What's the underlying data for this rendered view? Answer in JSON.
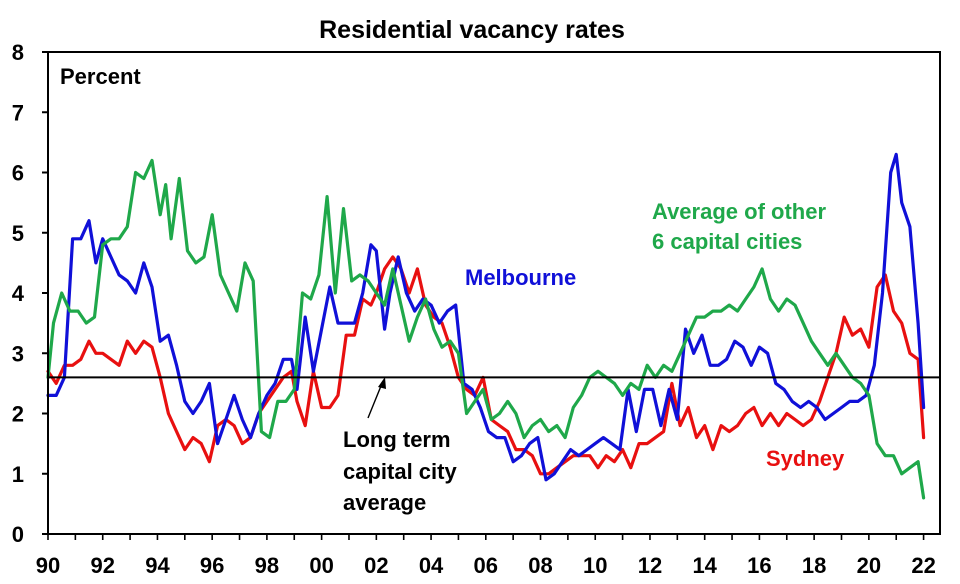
{
  "chart_data": {
    "type": "line",
    "title": "Residential vacancy rates",
    "ylabel": "Percent",
    "xlabel": "",
    "ylim": [
      0,
      8
    ],
    "xlim": [
      1990,
      2022.6
    ],
    "y_ticks": [
      "0",
      "1",
      "2",
      "3",
      "4",
      "5",
      "6",
      "7",
      "8"
    ],
    "x_ticks": [
      "90",
      "92",
      "94",
      "96",
      "98",
      "00",
      "02",
      "04",
      "06",
      "08",
      "10",
      "12",
      "14",
      "16",
      "18",
      "20",
      "22"
    ],
    "grid": false,
    "reference_line": {
      "value": 2.6,
      "label": "Long term capital city average",
      "label_lines": [
        "Long term",
        "capital city",
        "average"
      ],
      "color": "#000000"
    },
    "series": [
      {
        "name": "Melbourne",
        "color": "#1010d8",
        "x": [
          1990.0,
          1990.3,
          1990.6,
          1990.9,
          1991.2,
          1991.5,
          1991.75,
          1992.0,
          1992.3,
          1992.6,
          1992.9,
          1993.2,
          1993.5,
          1993.8,
          1994.1,
          1994.4,
          1994.7,
          1995.0,
          1995.3,
          1995.6,
          1995.9,
          1996.2,
          1996.5,
          1996.8,
          1997.1,
          1997.4,
          1997.7,
          1998.0,
          1998.3,
          1998.6,
          1998.9,
          1999.1,
          1999.4,
          1999.7,
          2000.0,
          2000.3,
          2000.6,
          2000.9,
          2001.2,
          2001.5,
          2001.8,
          2002.0,
          2002.3,
          2002.5,
          2002.8,
          2003.1,
          2003.4,
          2003.7,
          2004.0,
          2004.3,
          2004.6,
          2004.9,
          2005.2,
          2005.5,
          2005.8,
          2006.1,
          2006.4,
          2006.7,
          2007.0,
          2007.3,
          2007.6,
          2007.9,
          2008.2,
          2008.5,
          2008.8,
          2009.1,
          2009.4,
          2009.7,
          2010.0,
          2010.3,
          2010.6,
          2010.9,
          2011.2,
          2011.5,
          2011.8,
          2012.1,
          2012.4,
          2012.7,
          2013.0,
          2013.3,
          2013.6,
          2013.9,
          2014.2,
          2014.5,
          2014.8,
          2015.1,
          2015.4,
          2015.7,
          2016.0,
          2016.3,
          2016.6,
          2016.9,
          2017.2,
          2017.5,
          2017.8,
          2018.1,
          2018.4,
          2018.7,
          2019.0,
          2019.3,
          2019.6,
          2019.9,
          2020.2,
          2020.5,
          2020.8,
          2021.0,
          2021.2,
          2021.5,
          2021.8,
          2022.0
        ],
        "values": [
          2.3,
          2.3,
          2.6,
          4.9,
          4.9,
          5.2,
          4.5,
          4.9,
          4.6,
          4.3,
          4.2,
          4.0,
          4.5,
          4.1,
          3.2,
          3.3,
          2.8,
          2.2,
          2.0,
          2.2,
          2.5,
          1.5,
          1.9,
          2.3,
          1.9,
          1.6,
          2.0,
          2.3,
          2.5,
          2.9,
          2.9,
          2.4,
          3.6,
          2.7,
          3.4,
          4.1,
          3.5,
          3.5,
          3.5,
          4.0,
          4.8,
          4.7,
          3.4,
          4.0,
          4.6,
          4.0,
          3.7,
          3.9,
          3.8,
          3.5,
          3.7,
          3.8,
          2.5,
          2.4,
          2.1,
          1.7,
          1.6,
          1.6,
          1.2,
          1.3,
          1.5,
          1.6,
          0.9,
          1.0,
          1.2,
          1.4,
          1.3,
          1.4,
          1.5,
          1.6,
          1.5,
          1.4,
          2.4,
          1.7,
          2.4,
          2.4,
          1.8,
          2.4,
          1.9,
          3.4,
          3.0,
          3.3,
          2.8,
          2.8,
          2.9,
          3.2,
          3.1,
          2.8,
          3.1,
          3.0,
          2.5,
          2.4,
          2.2,
          2.1,
          2.2,
          2.1,
          1.9,
          2.0,
          2.1,
          2.2,
          2.2,
          2.3,
          2.8,
          4.0,
          6.0,
          6.3,
          5.5,
          5.1,
          3.5,
          2.1
        ]
      },
      {
        "name": "Sydney",
        "color": "#e81010",
        "x": [
          1990.0,
          1990.3,
          1990.6,
          1990.9,
          1991.2,
          1991.5,
          1991.75,
          1992.0,
          1992.3,
          1992.6,
          1992.9,
          1993.2,
          1993.5,
          1993.8,
          1994.1,
          1994.4,
          1994.7,
          1995.0,
          1995.3,
          1995.6,
          1995.9,
          1996.2,
          1996.5,
          1996.8,
          1997.1,
          1997.4,
          1997.7,
          1998.0,
          1998.3,
          1998.6,
          1998.9,
          1999.1,
          1999.4,
          1999.7,
          2000.0,
          2000.3,
          2000.6,
          2000.9,
          2001.2,
          2001.5,
          2001.8,
          2002.0,
          2002.3,
          2002.6,
          2002.9,
          2003.2,
          2003.5,
          2003.8,
          2004.1,
          2004.4,
          2004.7,
          2005.0,
          2005.3,
          2005.6,
          2005.9,
          2006.2,
          2006.5,
          2006.8,
          2007.1,
          2007.4,
          2007.7,
          2008.0,
          2008.3,
          2008.6,
          2008.9,
          2009.2,
          2009.5,
          2009.8,
          2010.1,
          2010.4,
          2010.7,
          2011.0,
          2011.3,
          2011.6,
          2011.9,
          2012.2,
          2012.5,
          2012.8,
          2013.1,
          2013.4,
          2013.7,
          2014.0,
          2014.3,
          2014.6,
          2014.9,
          2015.2,
          2015.5,
          2015.8,
          2016.1,
          2016.4,
          2016.7,
          2017.0,
          2017.3,
          2017.6,
          2017.9,
          2018.2,
          2018.5,
          2018.8,
          2019.1,
          2019.4,
          2019.7,
          2020.0,
          2020.3,
          2020.6,
          2020.9,
          2021.2,
          2021.5,
          2021.8,
          2022.0
        ],
        "values": [
          2.7,
          2.5,
          2.8,
          2.8,
          2.9,
          3.2,
          3.0,
          3.0,
          2.9,
          2.8,
          3.2,
          3.0,
          3.2,
          3.1,
          2.6,
          2.0,
          1.7,
          1.4,
          1.6,
          1.5,
          1.2,
          1.8,
          1.9,
          1.8,
          1.5,
          1.6,
          2.0,
          2.2,
          2.4,
          2.6,
          2.7,
          2.2,
          1.8,
          2.7,
          2.1,
          2.1,
          2.3,
          3.3,
          3.3,
          3.9,
          3.8,
          4.0,
          4.4,
          4.6,
          4.4,
          4.0,
          4.4,
          3.8,
          3.6,
          3.5,
          3.1,
          2.6,
          2.4,
          2.3,
          2.6,
          1.9,
          1.8,
          1.7,
          1.4,
          1.4,
          1.3,
          1.0,
          1.0,
          1.1,
          1.2,
          1.3,
          1.3,
          1.3,
          1.1,
          1.3,
          1.2,
          1.4,
          1.1,
          1.5,
          1.5,
          1.6,
          1.7,
          2.5,
          1.8,
          2.1,
          1.6,
          1.8,
          1.4,
          1.8,
          1.7,
          1.8,
          2.0,
          2.1,
          1.8,
          2.0,
          1.8,
          2.0,
          1.9,
          1.8,
          1.9,
          2.2,
          2.6,
          3.0,
          3.6,
          3.3,
          3.4,
          3.1,
          4.1,
          4.3,
          3.7,
          3.5,
          3.0,
          2.9,
          1.6
        ]
      },
      {
        "name": "Average of other 6 capital cities",
        "label_lines": [
          "Average of other",
          "6 capital cities"
        ],
        "color": "#1fa84a",
        "x": [
          1990.0,
          1990.2,
          1990.5,
          1990.8,
          1991.1,
          1991.4,
          1991.7,
          1992.0,
          1992.3,
          1992.6,
          1992.9,
          1993.2,
          1993.5,
          1993.8,
          1994.1,
          1994.3,
          1994.5,
          1994.8,
          1995.1,
          1995.4,
          1995.7,
          1996.0,
          1996.3,
          1996.6,
          1996.9,
          1997.2,
          1997.5,
          1997.8,
          1998.1,
          1998.4,
          1998.7,
          1999.0,
          1999.3,
          1999.6,
          1999.9,
          2000.2,
          2000.5,
          2000.8,
          2001.1,
          2001.4,
          2001.7,
          2002.0,
          2002.3,
          2002.6,
          2002.9,
          2003.2,
          2003.5,
          2003.8,
          2004.1,
          2004.4,
          2004.7,
          2005.0,
          2005.3,
          2005.6,
          2005.9,
          2006.2,
          2006.5,
          2006.8,
          2007.1,
          2007.4,
          2007.7,
          2008.0,
          2008.3,
          2008.6,
          2008.9,
          2009.2,
          2009.5,
          2009.8,
          2010.1,
          2010.4,
          2010.7,
          2011.0,
          2011.3,
          2011.6,
          2011.9,
          2012.2,
          2012.5,
          2012.8,
          2013.1,
          2013.4,
          2013.7,
          2014.0,
          2014.3,
          2014.6,
          2014.9,
          2015.2,
          2015.5,
          2015.8,
          2016.1,
          2016.4,
          2016.7,
          2017.0,
          2017.3,
          2017.6,
          2017.9,
          2018.2,
          2018.5,
          2018.8,
          2019.1,
          2019.4,
          2019.7,
          2020.0,
          2020.3,
          2020.6,
          2020.9,
          2021.2,
          2021.5,
          2021.8,
          2022.0
        ],
        "values": [
          2.6,
          3.5,
          4.0,
          3.7,
          3.7,
          3.5,
          3.6,
          4.8,
          4.9,
          4.9,
          5.1,
          6.0,
          5.9,
          6.2,
          5.3,
          5.8,
          4.9,
          5.9,
          4.7,
          4.5,
          4.6,
          5.3,
          4.3,
          4.0,
          3.7,
          4.5,
          4.2,
          1.7,
          1.6,
          2.2,
          2.2,
          2.4,
          4.0,
          3.9,
          4.3,
          5.6,
          4.0,
          5.4,
          4.2,
          4.3,
          4.2,
          4.0,
          3.8,
          4.4,
          3.8,
          3.2,
          3.6,
          3.9,
          3.4,
          3.1,
          3.2,
          3.0,
          2.0,
          2.2,
          2.4,
          1.9,
          2.0,
          2.2,
          2.0,
          1.6,
          1.8,
          1.9,
          1.7,
          1.8,
          1.6,
          2.1,
          2.3,
          2.6,
          2.7,
          2.6,
          2.5,
          2.3,
          2.5,
          2.4,
          2.8,
          2.6,
          2.8,
          2.7,
          3.0,
          3.3,
          3.6,
          3.6,
          3.7,
          3.7,
          3.8,
          3.7,
          3.9,
          4.1,
          4.4,
          3.9,
          3.7,
          3.9,
          3.8,
          3.5,
          3.2,
          3.0,
          2.8,
          3.0,
          2.8,
          2.6,
          2.5,
          2.3,
          1.5,
          1.3,
          1.3,
          1.0,
          1.1,
          1.2,
          0.6
        ]
      }
    ]
  }
}
